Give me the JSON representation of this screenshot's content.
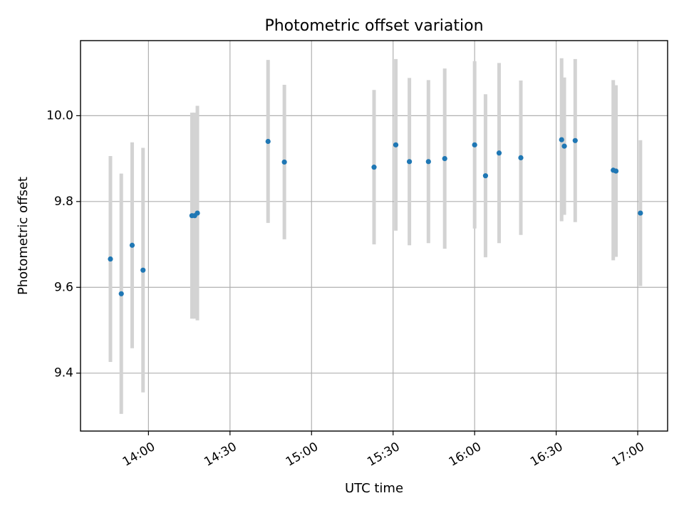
{
  "chart_data": {
    "type": "scatter",
    "title": "Photometric offset variation",
    "xlabel": "UTC time",
    "ylabel": "Photometric offset",
    "x_ticks": [
      "14:00",
      "14:30",
      "15:00",
      "15:30",
      "16:00",
      "16:30",
      "17:00"
    ],
    "x_tick_values": [
      "14:00",
      "14:30",
      "15:00",
      "15:30",
      "16:00",
      "16:30",
      "17:00"
    ],
    "xlim": [
      "13:35",
      "17:11"
    ],
    "y_ticks": [
      9.4,
      9.6,
      9.8,
      10.0
    ],
    "ylim": [
      9.265,
      10.175
    ],
    "grid": true,
    "point_color": "#1f77b4",
    "errorbar_color": "#d3d3d3",
    "series": [
      {
        "points": [
          {
            "x": "13:46",
            "y": 9.666,
            "err": 0.24
          },
          {
            "x": "13:50",
            "y": 9.585,
            "err": 0.28
          },
          {
            "x": "13:54",
            "y": 9.698,
            "err": 0.24
          },
          {
            "x": "13:58",
            "y": 9.64,
            "err": 0.285
          },
          {
            "x": "14:16",
            "y": 9.767,
            "err": 0.24
          },
          {
            "x": "14:17",
            "y": 9.767,
            "err": 0.24
          },
          {
            "x": "14:18",
            "y": 9.773,
            "err": 0.25
          },
          {
            "x": "14:44",
            "y": 9.94,
            "err": 0.19
          },
          {
            "x": "14:50",
            "y": 9.892,
            "err": 0.18
          },
          {
            "x": "15:23",
            "y": 9.88,
            "err": 0.18
          },
          {
            "x": "15:31",
            "y": 9.932,
            "err": 0.2
          },
          {
            "x": "15:36",
            "y": 9.893,
            "err": 0.195
          },
          {
            "x": "15:43",
            "y": 9.893,
            "err": 0.19
          },
          {
            "x": "15:49",
            "y": 9.9,
            "err": 0.21
          },
          {
            "x": "16:00",
            "y": 9.932,
            "err": 0.195
          },
          {
            "x": "16:04",
            "y": 9.86,
            "err": 0.19
          },
          {
            "x": "16:09",
            "y": 9.913,
            "err": 0.21
          },
          {
            "x": "16:17",
            "y": 9.902,
            "err": 0.18
          },
          {
            "x": "16:32",
            "y": 9.944,
            "err": 0.19
          },
          {
            "x": "16:33",
            "y": 9.929,
            "err": 0.16
          },
          {
            "x": "16:37",
            "y": 9.942,
            "err": 0.19
          },
          {
            "x": "16:51",
            "y": 9.873,
            "err": 0.21
          },
          {
            "x": "16:52",
            "y": 9.871,
            "err": 0.2
          },
          {
            "x": "17:01",
            "y": 9.773,
            "err": 0.17
          }
        ]
      }
    ]
  }
}
